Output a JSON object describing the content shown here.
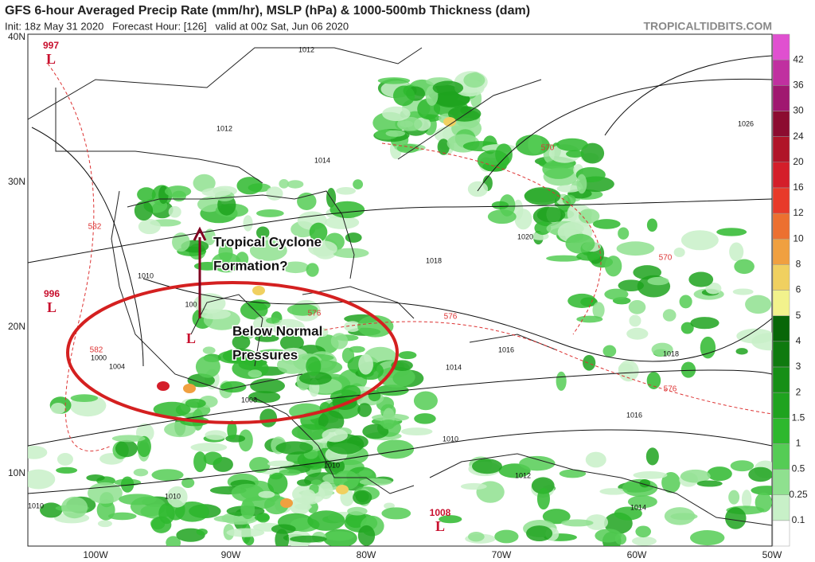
{
  "header": {
    "title": "GFS 6-hour Averaged Precip Rate (mm/hr), MSLP (hPa) & 1000-500mb Thickness (dam)",
    "subtitle": "Init: 18z May 31 2020   Forecast Hour: [126]   valid at 00z Sat, Jun 06 2020",
    "site": "TROPICALTIDBITS.COM"
  },
  "map": {
    "lat_labels": [
      "40N",
      "30N",
      "20N",
      "10N"
    ],
    "lon_labels": [
      "100W",
      "90W",
      "80W",
      "70W",
      "60W",
      "50W"
    ],
    "lows": [
      {
        "value": "997",
        "letter": "L"
      },
      {
        "value": "996",
        "letter": "L"
      },
      {
        "value": "1008",
        "letter": "L"
      }
    ],
    "isobar_labels": [
      "1012",
      "1012",
      "1014",
      "1010",
      "100",
      "1026",
      "1020",
      "1018",
      "1016",
      "1018",
      "1014",
      "1016",
      "1010",
      "1012",
      "1014",
      "1010",
      "1010",
      "1010",
      "1008",
      "1000",
      "1004"
    ],
    "thickness_labels": [
      "570",
      "582",
      "576",
      "576",
      "570",
      "576",
      "582"
    ],
    "annotations": {
      "arrow_text": [
        "Tropical Cyclone",
        "Formation?"
      ],
      "circle_text": [
        "Below Normal",
        "Pressures"
      ],
      "low_letter": "L"
    }
  },
  "colorbar": {
    "labels": [
      "0.1",
      "0.25",
      "0.5",
      "1",
      "1.5",
      "2",
      "3",
      "4",
      "5",
      "6",
      "8",
      "10",
      "12",
      "16",
      "20",
      "24",
      "30",
      "36",
      "42"
    ],
    "colors": [
      "#ffffff",
      "#c8f0c8",
      "#8fe08f",
      "#55cc55",
      "#2eb82e",
      "#1fa31f",
      "#168f16",
      "#0f7a0f",
      "#086608",
      "#f2f28c",
      "#f0d060",
      "#f0a040",
      "#ec7030",
      "#e83a2a",
      "#d41e2a",
      "#b01428",
      "#8c0c30",
      "#a01870",
      "#c030a0",
      "#e050d0"
    ]
  }
}
